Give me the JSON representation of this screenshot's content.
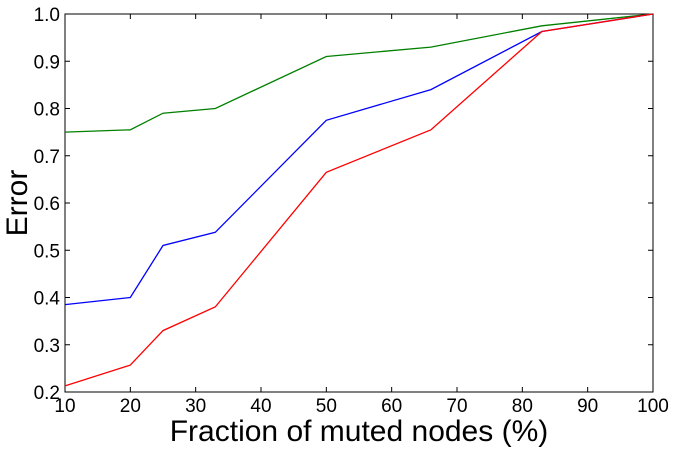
{
  "chart_data": {
    "type": "line",
    "xlabel": "Fraction of muted nodes (%)",
    "ylabel": "Error",
    "xlim": [
      10,
      100
    ],
    "ylim": [
      0.2,
      1.0
    ],
    "xticks": [
      "10",
      "20",
      "30",
      "40",
      "50",
      "60",
      "70",
      "80",
      "90",
      "100"
    ],
    "yticks": [
      "0.2",
      "0.3",
      "0.4",
      "0.5",
      "0.6",
      "0.7",
      "0.8",
      "0.9",
      "1.0"
    ],
    "grid": false,
    "legend": "none",
    "series": [
      {
        "color": "#008000",
        "x": [
          10,
          20,
          25,
          33,
          50,
          66,
          83,
          100
        ],
        "y": [
          0.75,
          0.755,
          0.79,
          0.8,
          0.91,
          0.93,
          0.975,
          1.0
        ]
      },
      {
        "color": "#0000ff",
        "x": [
          10,
          20,
          25,
          33,
          50,
          66,
          83,
          100
        ],
        "y": [
          0.385,
          0.4,
          0.51,
          0.538,
          0.775,
          0.84,
          0.963,
          1.0
        ]
      },
      {
        "color": "#ff0000",
        "x": [
          10,
          20,
          25,
          33,
          50,
          66,
          83,
          100
        ],
        "y": [
          0.213,
          0.257,
          0.33,
          0.38,
          0.665,
          0.755,
          0.963,
          1.0
        ]
      }
    ]
  }
}
